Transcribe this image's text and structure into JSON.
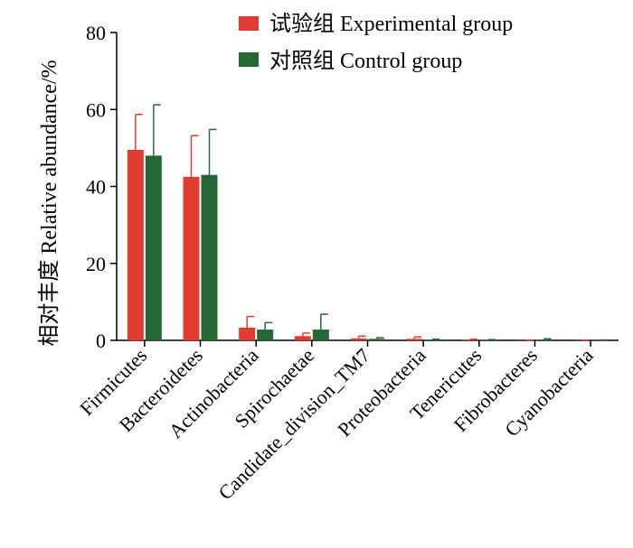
{
  "chart_data": {
    "type": "bar",
    "ylabel": "相对丰度 Relative abundance/%",
    "ylim": [
      0,
      80
    ],
    "yticks": [
      0,
      20,
      40,
      60,
      80
    ],
    "categories": [
      "Firmicutes",
      "Bacteroidetes",
      "Actinobacteria",
      "Spirochaetae",
      "Candidate_division_TM7",
      "Proteobacteria",
      "Tenericutes",
      "Fibrobacteres",
      "Cyanobacteria"
    ],
    "series": [
      {
        "name": "试验组 Experimental group",
        "color": "#e03c31",
        "values": [
          49.5,
          42.5,
          3.3,
          1.1,
          0.5,
          0.4,
          0.15,
          0.05,
          0.05
        ],
        "errors": [
          9.2,
          10.7,
          2.9,
          0.8,
          0.6,
          0.5,
          0.15,
          0.05,
          0.05
        ]
      },
      {
        "name": "对照组 Control group",
        "color": "#256836",
        "values": [
          48.0,
          43.0,
          2.8,
          2.8,
          0.4,
          0.2,
          0.1,
          0.2,
          0.05
        ],
        "errors": [
          13.2,
          11.8,
          1.8,
          4.0,
          0.3,
          0.1,
          0.1,
          0.2,
          0.05
        ]
      }
    ],
    "legend_position": "top-right"
  }
}
